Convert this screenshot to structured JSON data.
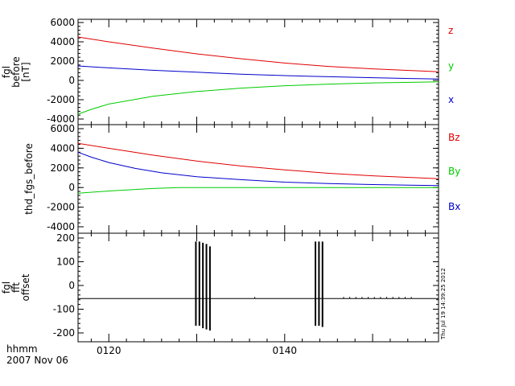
{
  "x_label": "hhmm",
  "date_label": "2007 Nov 06",
  "timestamp": "Thu Jul 19 14:39:25 2012",
  "colors": {
    "red": "#e00000",
    "green": "#00cc00",
    "blue": "#0000cc",
    "black": "#000000"
  },
  "chart_data": [
    {
      "type": "line",
      "ylabel_lines": [
        "fgl",
        "before",
        "[nT]"
      ],
      "ylim": [
        -4000,
        6000
      ],
      "yticks": [
        6000,
        4000,
        2000,
        0,
        -2000,
        -4000
      ],
      "xlim": [
        116.5,
        157.5
      ],
      "xticks": [
        {
          "x": 120,
          "label": "0120"
        },
        {
          "x": 140,
          "label": "0140"
        }
      ],
      "grid": false,
      "series": [
        {
          "name": "z",
          "color": "#e00000",
          "x": [
            116.5,
            120,
            125,
            130,
            135,
            140,
            145,
            150,
            155,
            157.5
          ],
          "values": [
            4500,
            4000,
            3350,
            2750,
            2250,
            1800,
            1450,
            1200,
            1000,
            900
          ]
        },
        {
          "name": "y",
          "color": "#00cc00",
          "x": [
            116.5,
            118,
            120,
            125,
            130,
            135,
            140,
            145,
            150,
            155,
            157.5
          ],
          "values": [
            -3500,
            -3000,
            -2450,
            -1650,
            -1150,
            -800,
            -550,
            -380,
            -260,
            -180,
            -150
          ]
        },
        {
          "name": "x",
          "color": "#0000cc",
          "x": [
            116.5,
            120,
            125,
            130,
            135,
            140,
            145,
            150,
            155,
            157.5
          ],
          "values": [
            1500,
            1300,
            1050,
            850,
            650,
            500,
            380,
            280,
            180,
            150
          ]
        }
      ]
    },
    {
      "type": "line",
      "ylabel_lines": [
        "thd_fgs_before"
      ],
      "ylim": [
        -4000,
        6000
      ],
      "yticks": [
        6000,
        4000,
        2000,
        0,
        -2000,
        -4000
      ],
      "xlim": [
        116.5,
        157.5
      ],
      "xticks": [
        {
          "x": 120,
          "label": "0120"
        },
        {
          "x": 140,
          "label": "0140"
        }
      ],
      "grid": false,
      "series": [
        {
          "name": "Bz",
          "color": "#e00000",
          "x": [
            116.5,
            120,
            125,
            130,
            135,
            140,
            145,
            150,
            155,
            157.5
          ],
          "values": [
            4500,
            4000,
            3300,
            2700,
            2200,
            1800,
            1450,
            1200,
            1000,
            900
          ]
        },
        {
          "name": "By",
          "color": "#00cc00",
          "x": [
            116.5,
            117,
            120,
            125,
            128,
            132,
            140,
            150,
            157.5
          ],
          "values": [
            -600,
            -550,
            -350,
            -100,
            0,
            0,
            0,
            0,
            0
          ]
        },
        {
          "name": "Bx",
          "color": "#0000cc",
          "x": [
            116.5,
            118,
            120,
            123,
            126,
            130,
            135,
            140,
            145,
            150,
            157.5
          ],
          "values": [
            3600,
            3100,
            2550,
            1950,
            1500,
            1100,
            800,
            550,
            400,
            300,
            200
          ]
        }
      ]
    },
    {
      "type": "line",
      "ylabel_lines": [
        "fgl",
        "fft",
        "offset"
      ],
      "ylim": [
        -210,
        210
      ],
      "yticks": [
        200,
        100,
        0,
        -100,
        -200
      ],
      "xlim": [
        116.5,
        157.5
      ],
      "xticks": [
        {
          "x": 120,
          "label": "0120"
        },
        {
          "x": 140,
          "label": "0140"
        }
      ],
      "grid": false,
      "baseline": -55,
      "spikes": [
        {
          "x": 129.9,
          "top": 185,
          "bottom": -170
        },
        {
          "x": 130.3,
          "top": 185,
          "bottom": -170
        },
        {
          "x": 130.7,
          "top": 180,
          "bottom": -180
        },
        {
          "x": 131.1,
          "top": 175,
          "bottom": -185
        },
        {
          "x": 131.5,
          "top": 165,
          "bottom": -190
        },
        {
          "x": 143.5,
          "top": 185,
          "bottom": -170
        },
        {
          "x": 143.9,
          "top": 185,
          "bottom": -170
        },
        {
          "x": 144.3,
          "top": 185,
          "bottom": -175
        }
      ],
      "small_marks_x": [
        136.6,
        146.7,
        147.4,
        148.1,
        148.8,
        149.5,
        150.2,
        150.9,
        151.6,
        152.3,
        153.0,
        153.7,
        154.4
      ]
    }
  ]
}
